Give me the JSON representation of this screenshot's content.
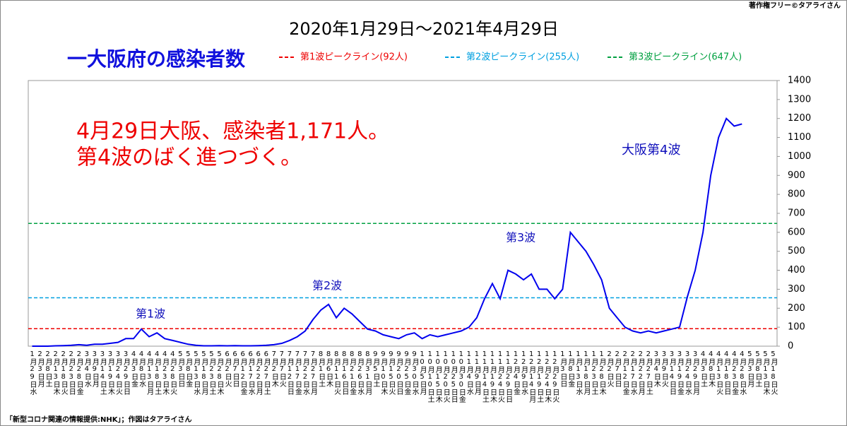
{
  "chart_data": {
    "type": "line",
    "title": "2020年1月29日～2021年4月29日",
    "subtitle": "一大阪府の感染者数",
    "credit": "著作権フリー©タアライさん",
    "source": "「新型コロナ関連の情報提供:NHK」；作図はタアライさん",
    "annotations": [
      "4月29日大阪、感染者1,171人。",
      "第4波のばく進つづく。",
      "第1波",
      "第2波",
      "第3波",
      "大阪第4波"
    ],
    "categories": [
      "1月29日水",
      "2月3日月",
      "2月8日土",
      "2月13日木",
      "2月18日火",
      "2月23日日",
      "2月28日金",
      "3月4日水",
      "3月9日月",
      "3月14日土",
      "3月19日木",
      "3月24日火",
      "3月29日日",
      "4月3日金",
      "4月8日水",
      "4月13日月",
      "4月18日土",
      "4月23日木",
      "4月28日火",
      "5月3日日",
      "5月8日金",
      "5月13日水",
      "5月18日月",
      "5月23日土",
      "5月28日木",
      "6月2日火",
      "6月7日日",
      "6月12日金",
      "6月17日水",
      "6月22日月",
      "6月27日土",
      "7月2日木",
      "7月7日火",
      "7月12日日",
      "7月17日金",
      "7月22日水",
      "7月27日月",
      "8月1日土",
      "8月6日木",
      "8月11日火",
      "8月16日日",
      "8月21日金",
      "8月26日水",
      "8月31日月",
      "9月5日土",
      "9月10日木",
      "9月15日火",
      "9月20日日",
      "9月25日金",
      "9月30日水",
      "10月5日月",
      "10月10日土",
      "10月15日木",
      "10月20日火",
      "10月25日日",
      "10月30日金",
      "11月4日水",
      "11月9日月",
      "11月14日土",
      "11月19日木",
      "11月24日火",
      "11月29日日",
      "12月4日金",
      "12月9日水",
      "12月14日月",
      "12月19日土",
      "12月24日木",
      "12月29日火",
      "1月3日日",
      "1月8日金",
      "1月13日水",
      "1月18日月",
      "1月23日土",
      "1月28日木",
      "2月2日火",
      "2月7日日",
      "2月12日金",
      "2月17日水",
      "2月22日月",
      "2月27日土",
      "3月4日木",
      "3月9日火",
      "3月14日日",
      "3月19日金",
      "3月24日水",
      "3月29日月",
      "4月3日土",
      "4月8日木",
      "4月13日火",
      "4月18日日",
      "4月23日金",
      "4月28日水",
      "5月3日月",
      "5月8日土",
      "5月13日木",
      "5月18日火"
    ],
    "series": [
      {
        "name": "大阪府の感染者数",
        "color": "#0000ee",
        "values": [
          0,
          0,
          0,
          2,
          3,
          5,
          8,
          5,
          10,
          10,
          15,
          20,
          40,
          40,
          90,
          50,
          70,
          40,
          30,
          20,
          10,
          5,
          2,
          2,
          3,
          2,
          3,
          2,
          2,
          3,
          5,
          8,
          15,
          30,
          50,
          80,
          140,
          190,
          220,
          150,
          200,
          170,
          130,
          90,
          80,
          60,
          50,
          40,
          60,
          70,
          40,
          60,
          50,
          60,
          70,
          80,
          100,
          150,
          250,
          330,
          250,
          400,
          380,
          350,
          380,
          300,
          300,
          250,
          300,
          600,
          550,
          500,
          430,
          350,
          200,
          150,
          100,
          80,
          70,
          80,
          70,
          80,
          90,
          100,
          260,
          400,
          600,
          900,
          1100,
          1200,
          1160,
          1171,
          null,
          null,
          null,
          null
        ]
      }
    ],
    "peak_lines": [
      {
        "label": "第1波ピークライン(92人)",
        "value": 92,
        "color": "#ee0000"
      },
      {
        "label": "第2波ピークライン(255人)",
        "value": 255,
        "color": "#00a0e0"
      },
      {
        "label": "第3波ピークライン(647人)",
        "value": 647,
        "color": "#00a040"
      }
    ],
    "ylim": [
      0,
      1400
    ],
    "yticks": [
      0,
      100,
      200,
      300,
      400,
      500,
      600,
      700,
      800,
      900,
      1000,
      1100,
      1200,
      1300,
      1400
    ]
  }
}
